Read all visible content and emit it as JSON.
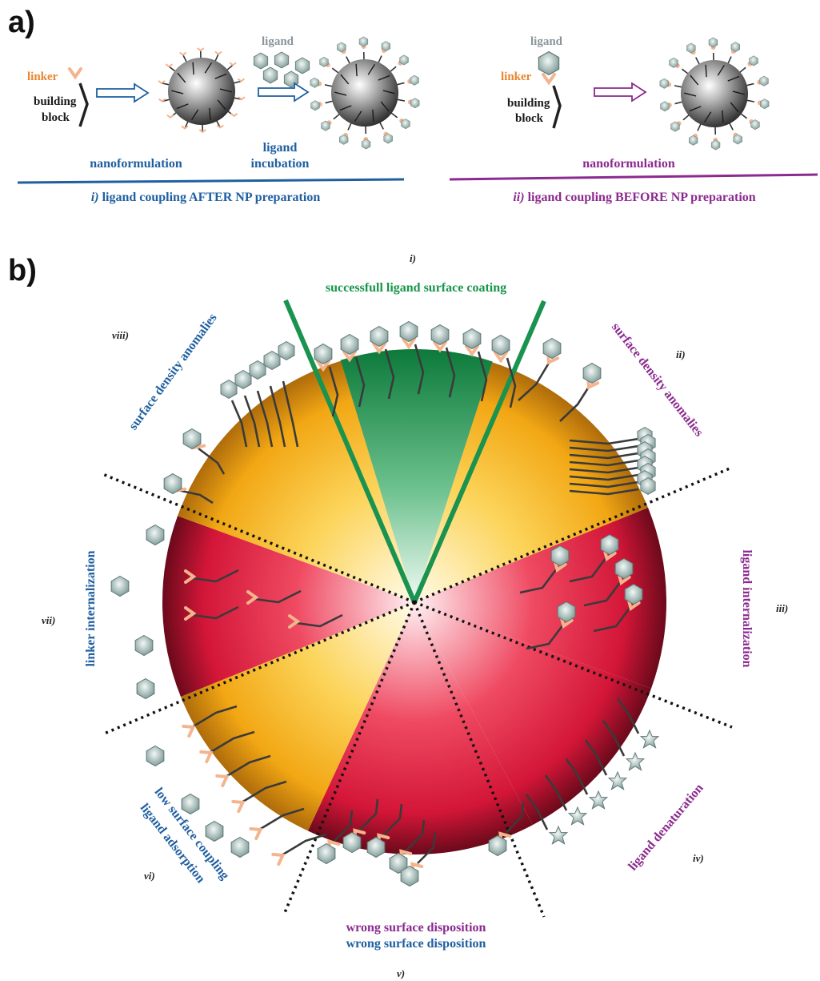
{
  "panel_a": {
    "label": "a)",
    "after": {
      "linker": "linker",
      "building_block": [
        "building",
        "block"
      ],
      "ligand": "ligand",
      "step1": "nanoformulation",
      "step2": [
        "ligand",
        "incubation"
      ],
      "caption_roman": "i)",
      "caption_text": " ligand coupling AFTER NP preparation"
    },
    "before": {
      "ligand": "ligand",
      "linker": "linker",
      "building_block": [
        "building",
        "block"
      ],
      "step": "nanoformulation",
      "caption_roman": "ii)",
      "caption_text": " ligand coupling BEFORE NP preparation"
    }
  },
  "panel_b": {
    "label": "b)",
    "sectors": {
      "i": {
        "roman": "i)",
        "text": "successfull ligand surface coating"
      },
      "ii": {
        "roman": "ii)",
        "text": "surface density anomalies"
      },
      "iii": {
        "roman": "iii)",
        "text": "ligand internalization"
      },
      "iv": {
        "roman": "iv)",
        "text": "ligand denaturation"
      },
      "v": {
        "roman": "v)",
        "text_purple": "wrong surface disposition",
        "text_blue": "wrong surface disposition"
      },
      "vi": {
        "roman": "vi)",
        "line1": "low surface coupling",
        "line2": "ligand adsorption"
      },
      "vii": {
        "roman": "vii)",
        "text": "linker internalization"
      },
      "viii": {
        "roman": "viii)",
        "text": "surface density anomalies"
      }
    }
  },
  "colors": {
    "blue": "#1f5fa0",
    "purple": "#8b2a8f",
    "green": "#179548",
    "linker_orange": "#e9852d",
    "sector_yellow": "#f5a81c",
    "sector_red": "#d81e3a",
    "sector_green": "#1a9350"
  }
}
